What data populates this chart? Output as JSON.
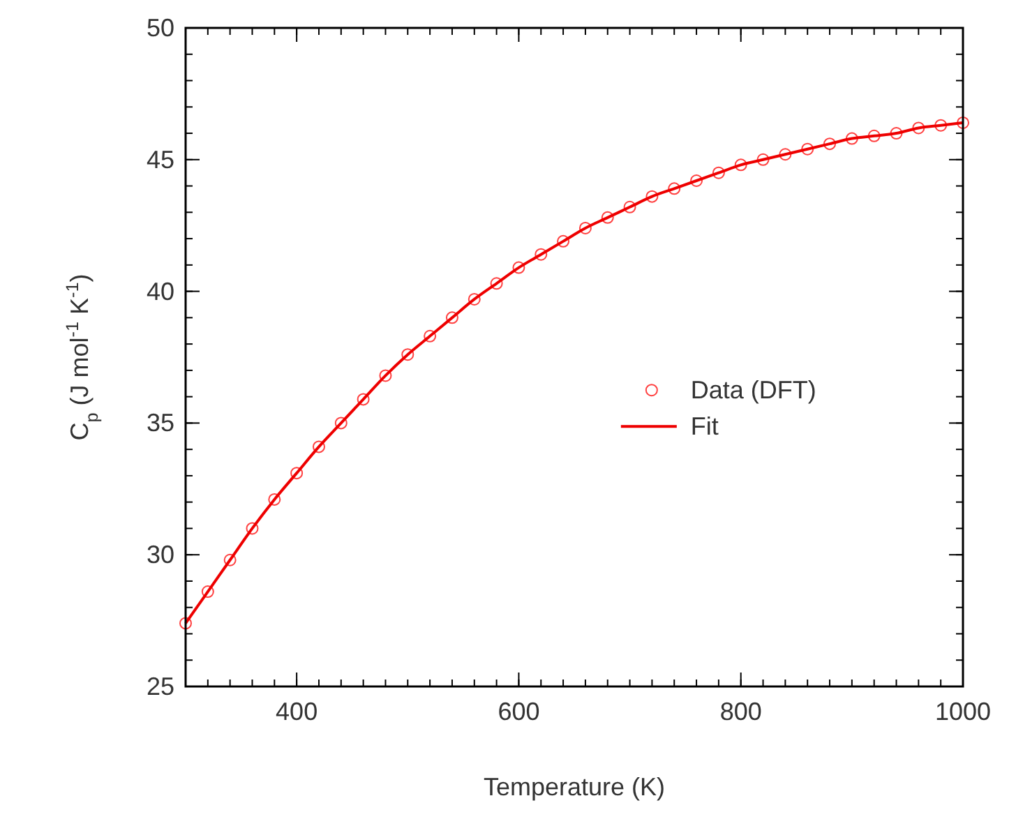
{
  "chart_data": {
    "type": "scatter",
    "xlabel": "Temperature (K)",
    "ylabel": "C$_{p}$ (J mol$^{-1}$ K$^{-1}$)",
    "x": [
      300,
      320,
      340,
      360,
      380,
      400,
      420,
      440,
      460,
      480,
      500,
      520,
      540,
      560,
      580,
      600,
      620,
      640,
      660,
      680,
      700,
      720,
      740,
      760,
      780,
      800,
      820,
      840,
      860,
      880,
      900,
      920,
      940,
      960,
      980,
      1000
    ],
    "series": [
      {
        "name": "Data (DFT)",
        "marker": "circle",
        "color": "#ff4040",
        "values": [
          27.4,
          28.6,
          29.8,
          31.0,
          32.1,
          33.1,
          34.1,
          35.0,
          35.9,
          36.8,
          37.6,
          38.3,
          39.0,
          39.7,
          40.3,
          40.9,
          41.4,
          41.9,
          42.4,
          42.8,
          43.2,
          43.6,
          43.9,
          44.2,
          44.5,
          44.8,
          45.0,
          45.2,
          45.4,
          45.6,
          45.8,
          45.9,
          46.0,
          46.2,
          46.3,
          46.4
        ]
      },
      {
        "name": "Fit",
        "type": "line",
        "line_style": "solid",
        "color": "#ee0000",
        "values": [
          27.4,
          28.6,
          29.8,
          31.0,
          32.1,
          33.1,
          34.1,
          35.0,
          35.9,
          36.8,
          37.6,
          38.3,
          39.0,
          39.7,
          40.3,
          40.9,
          41.4,
          41.9,
          42.4,
          42.8,
          43.2,
          43.6,
          43.9,
          44.2,
          44.5,
          44.8,
          45.0,
          45.2,
          45.4,
          45.6,
          45.8,
          45.9,
          46.0,
          46.2,
          46.3,
          46.4
        ]
      }
    ],
    "xlim": [
      300,
      1000
    ],
    "xticks": [
      400,
      600,
      800,
      1000
    ],
    "ylim": [
      25,
      50
    ],
    "yticks": [
      25,
      30,
      35,
      40,
      45,
      50
    ],
    "grid": false,
    "legend": "right"
  }
}
